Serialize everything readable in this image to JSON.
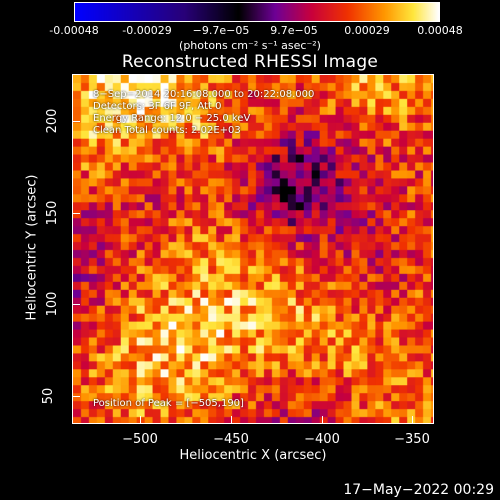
{
  "colorbar": {
    "ticks": [
      "-0.00048",
      "-0.00029",
      "−9.7e−05",
      "9.7e−05",
      "0.00029",
      "0.00048"
    ],
    "units": "(photons cm⁻² s⁻¹ asec⁻²)"
  },
  "title": "Reconstructed RHESSI Image",
  "info": {
    "time": "8−Sep−2014 20:16:08.000 to 20:22:08.000",
    "detectors": "Detectors: 3F 6F 9F, Att 0",
    "energy": "Energy Range: 12.0 − 25.0 keV",
    "clean": "Clean      Total counts: 2.02E+03",
    "peak": "Position of Peak = [−505,190]"
  },
  "axes": {
    "xlabel": "Heliocentric X (arcsec)",
    "ylabel": "Heliocentric Y (arcsec)",
    "xticks": [
      "−500",
      "−450",
      "−400",
      "−350"
    ],
    "yticks": [
      "50",
      "100",
      "150",
      "200"
    ]
  },
  "date": "17−May−2022 00:29",
  "colors": {
    "background": "#000000",
    "text": "#ffffff"
  }
}
